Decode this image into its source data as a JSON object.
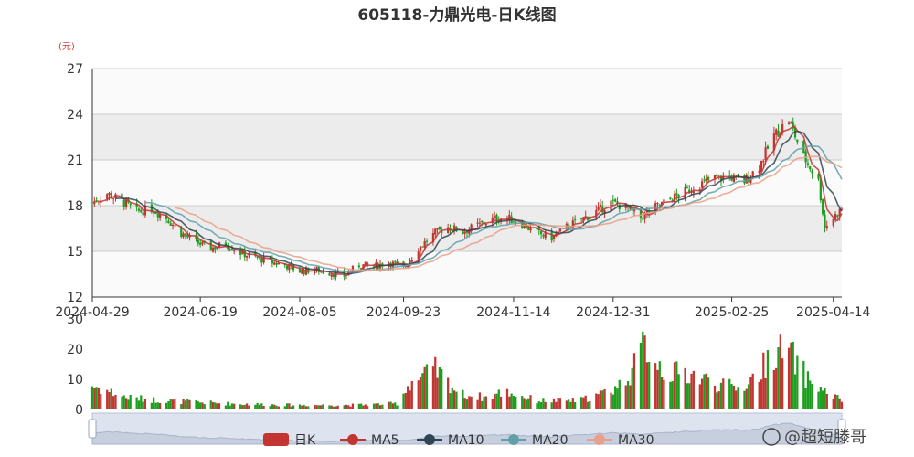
{
  "chart_data": {
    "type": "candlestick",
    "title": "605118-力鼎光电-日K线图",
    "y_unit": "(元)",
    "price_axis": {
      "min": 12,
      "max": 27,
      "ticks": [
        12,
        15,
        18,
        21,
        24,
        27
      ]
    },
    "volume_axis": {
      "min": 0,
      "max": 30,
      "ticks": [
        0,
        10,
        20,
        30
      ]
    },
    "x_axis": {
      "start": "2024-04-29",
      "end": "2025-04-18",
      "tick_labels": [
        "2024-04-29",
        "2024-06-19",
        "2024-08-05",
        "2024-09-23",
        "2024-11-14",
        "2024-12-31",
        "2025-02-25",
        "2025-04-14"
      ]
    },
    "legend": [
      "日K",
      "MA5",
      "MA10",
      "MA20",
      "MA30"
    ],
    "colors": {
      "up": "#c23531",
      "down": "#1e9e1e",
      "MA5": "#c23531",
      "MA10": "#2f4554",
      "MA20": "#61a0a8",
      "MA30": "#e8a08a",
      "band": "#ececec",
      "grid": "#cccccc",
      "unit": "#d43a3a"
    },
    "price_anchors": [
      [
        "2024-04-29",
        18.2
      ],
      [
        "2024-05-06",
        18.8
      ],
      [
        "2024-05-13",
        18.3
      ],
      [
        "2024-05-20",
        17.6
      ],
      [
        "2024-05-27",
        17.8
      ],
      [
        "2024-06-03",
        17.2
      ],
      [
        "2024-06-10",
        16.2
      ],
      [
        "2024-06-17",
        15.6
      ],
      [
        "2024-06-24",
        15.2
      ],
      [
        "2024-07-01",
        15.5
      ],
      [
        "2024-07-08",
        14.9
      ],
      [
        "2024-07-15",
        14.6
      ],
      [
        "2024-07-22",
        14.3
      ],
      [
        "2024-07-29",
        14.1
      ],
      [
        "2024-08-05",
        13.7
      ],
      [
        "2024-08-12",
        13.8
      ],
      [
        "2024-08-19",
        13.6
      ],
      [
        "2024-08-26",
        13.4
      ],
      [
        "2024-09-02",
        14.1
      ],
      [
        "2024-09-09",
        14.0
      ],
      [
        "2024-09-16",
        14.3
      ],
      [
        "2024-09-23",
        13.9
      ],
      [
        "2024-09-30",
        15.2
      ],
      [
        "2024-10-08",
        16.2
      ],
      [
        "2024-10-14",
        16.6
      ],
      [
        "2024-10-21",
        16.3
      ],
      [
        "2024-10-28",
        16.7
      ],
      [
        "2024-11-04",
        17.1
      ],
      [
        "2024-11-11",
        17.2
      ],
      [
        "2024-11-18",
        16.8
      ],
      [
        "2024-11-25",
        16.2
      ],
      [
        "2024-12-02",
        15.9
      ],
      [
        "2024-12-09",
        16.6
      ],
      [
        "2024-12-16",
        17.1
      ],
      [
        "2024-12-23",
        17.6
      ],
      [
        "2024-12-30",
        18.2
      ],
      [
        "2025-01-06",
        17.9
      ],
      [
        "2025-01-13",
        17.2
      ],
      [
        "2025-01-20",
        17.9
      ],
      [
        "2025-02-03",
        18.9
      ],
      [
        "2025-02-10",
        19.4
      ],
      [
        "2025-02-17",
        19.8
      ],
      [
        "2025-02-24",
        19.9
      ],
      [
        "2025-03-03",
        19.6
      ],
      [
        "2025-03-10",
        20.6
      ],
      [
        "2025-03-17",
        22.6
      ],
      [
        "2025-03-24",
        23.6
      ],
      [
        "2025-03-31",
        21.2
      ],
      [
        "2025-04-07",
        19.6
      ],
      [
        "2025-04-10",
        16.6
      ],
      [
        "2025-04-14",
        17.2
      ],
      [
        "2025-04-18",
        17.8
      ]
    ],
    "volume_anchors": [
      [
        "2024-04-29",
        8
      ],
      [
        "2024-05-15",
        4
      ],
      [
        "2024-06-01",
        3
      ],
      [
        "2024-07-01",
        2
      ],
      [
        "2024-08-01",
        1.5
      ],
      [
        "2024-09-01",
        1.5
      ],
      [
        "2024-09-20",
        2
      ],
      [
        "2024-09-26",
        9
      ],
      [
        "2024-10-08",
        13
      ],
      [
        "2024-10-20",
        5
      ],
      [
        "2024-11-01",
        4
      ],
      [
        "2024-11-10",
        6
      ],
      [
        "2024-11-25",
        3
      ],
      [
        "2024-12-15",
        3
      ],
      [
        "2024-12-25",
        5
      ],
      [
        "2025-01-03",
        8
      ],
      [
        "2025-01-10",
        14
      ],
      [
        "2025-01-15",
        22
      ],
      [
        "2025-01-25",
        12
      ],
      [
        "2025-02-05",
        12
      ],
      [
        "2025-02-20",
        8
      ],
      [
        "2025-03-01",
        7
      ],
      [
        "2025-03-10",
        12
      ],
      [
        "2025-03-17",
        20
      ],
      [
        "2025-03-25",
        18
      ],
      [
        "2025-04-02",
        10
      ],
      [
        "2025-04-10",
        6
      ],
      [
        "2025-04-18",
        3
      ]
    ]
  },
  "data_zoom": {
    "start": 0,
    "end": 100
  },
  "watermark": "@超短滕哥"
}
